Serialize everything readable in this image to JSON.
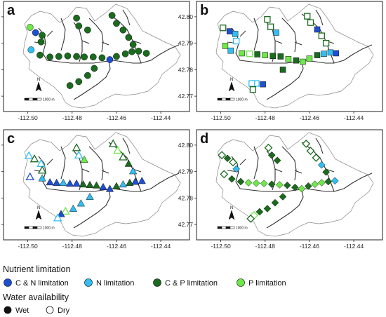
{
  "panels": [
    {
      "label": "a",
      "symbol": "circle"
    },
    {
      "label": "b",
      "symbol": "square"
    },
    {
      "label": "c",
      "symbol": "triangle"
    },
    {
      "label": "d",
      "symbol": "diamond"
    }
  ],
  "axes": {
    "x_ticks": [
      "-112.50",
      "-112.48",
      "-112.46",
      "-112.44"
    ],
    "y_ticks": [
      "42.80",
      "42.79",
      "42.78",
      "42.77"
    ]
  },
  "north_arrow": "N",
  "scale_bar": {
    "label": "1000 m"
  },
  "legend": {
    "nutrient_title": "Nutrient limitation",
    "nutrient_items": [
      {
        "name": "C & N limitation",
        "color": "#1f4fd1"
      },
      {
        "name": "N limitation",
        "color": "#33bdf0"
      },
      {
        "name": "C & P limitation",
        "color": "#1a6b1e"
      },
      {
        "name": "P limitation",
        "color": "#6fe84a"
      }
    ],
    "water_title": "Water availability",
    "water_items": [
      {
        "name": "Wet",
        "style": "filled"
      },
      {
        "name": "Dry",
        "style": "open"
      }
    ]
  },
  "colors": {
    "CN": "#1f4fd1",
    "N": "#33bdf0",
    "CP": "#1a6b1e",
    "P": "#6fe84a"
  },
  "map_data": {
    "type": "site-map",
    "xlim": [
      -112.51,
      -112.428
    ],
    "ylim": [
      42.765,
      42.805
    ],
    "panels": {
      "a": [
        {
          "x": -112.499,
          "y": 42.796,
          "c": "P",
          "w": true
        },
        {
          "x": -112.4965,
          "y": 42.794,
          "c": "CN",
          "w": true
        },
        {
          "x": -112.4935,
          "y": 42.793,
          "c": "CP",
          "w": true
        },
        {
          "x": -112.494,
          "y": 42.7905,
          "c": "CP",
          "w": true
        },
        {
          "x": -112.4985,
          "y": 42.7875,
          "c": "N",
          "w": true
        },
        {
          "x": -112.4945,
          "y": 42.7855,
          "c": "CP",
          "w": true
        },
        {
          "x": -112.49,
          "y": 42.7848,
          "c": "CP",
          "w": true
        },
        {
          "x": -112.486,
          "y": 42.785,
          "c": "CP",
          "w": true
        },
        {
          "x": -112.482,
          "y": 42.7852,
          "c": "CP",
          "w": true
        },
        {
          "x": -112.478,
          "y": 42.785,
          "c": "CP",
          "w": true
        },
        {
          "x": -112.4745,
          "y": 42.7848,
          "c": "CP",
          "w": true
        },
        {
          "x": -112.4705,
          "y": 42.7848,
          "c": "CP",
          "w": true
        },
        {
          "x": -112.4665,
          "y": 42.7845,
          "c": "CP",
          "w": true
        },
        {
          "x": -112.463,
          "y": 42.7838,
          "c": "CN",
          "w": true
        },
        {
          "x": -112.46,
          "y": 42.785,
          "c": "CP",
          "w": true
        },
        {
          "x": -112.456,
          "y": 42.786,
          "c": "CP",
          "w": true
        },
        {
          "x": -112.453,
          "y": 42.7868,
          "c": "CP",
          "w": true
        },
        {
          "x": -112.45,
          "y": 42.787,
          "c": "CP",
          "w": true
        },
        {
          "x": -112.4465,
          "y": 42.7862,
          "c": "CP",
          "w": true
        },
        {
          "x": -112.478,
          "y": 42.7995,
          "c": "CP",
          "w": true
        },
        {
          "x": -112.477,
          "y": 42.7965,
          "c": "CP",
          "w": true
        },
        {
          "x": -112.473,
          "y": 42.795,
          "c": "CP",
          "w": true
        },
        {
          "x": -112.462,
          "y": 42.8005,
          "c": "CP",
          "w": true
        },
        {
          "x": -112.46,
          "y": 42.7975,
          "c": "CP",
          "w": true
        },
        {
          "x": -112.457,
          "y": 42.795,
          "c": "CP",
          "w": true
        },
        {
          "x": -112.4545,
          "y": 42.7922,
          "c": "CP",
          "w": true
        },
        {
          "x": -112.4525,
          "y": 42.7895,
          "c": "CP",
          "w": true
        },
        {
          "x": -112.47,
          "y": 42.7805,
          "c": "CP",
          "w": true
        },
        {
          "x": -112.473,
          "y": 42.7778,
          "c": "CP",
          "w": true
        },
        {
          "x": -112.477,
          "y": 42.7755,
          "c": "CP",
          "w": true
        },
        {
          "x": -112.481,
          "y": 42.774,
          "c": "CP",
          "w": true
        }
      ],
      "b": [
        {
          "x": -112.499,
          "y": 42.7958,
          "c": "CP",
          "w": false
        },
        {
          "x": -112.496,
          "y": 42.7945,
          "c": "CN",
          "w": true
        },
        {
          "x": -112.4935,
          "y": 42.7935,
          "c": "N",
          "w": true
        },
        {
          "x": -112.493,
          "y": 42.7908,
          "c": "N",
          "w": false
        },
        {
          "x": -112.498,
          "y": 42.789,
          "c": "P",
          "w": true
        },
        {
          "x": -112.4955,
          "y": 42.7872,
          "c": "N",
          "w": true
        },
        {
          "x": -112.4905,
          "y": 42.7862,
          "c": "P",
          "w": true
        },
        {
          "x": -112.487,
          "y": 42.786,
          "c": "P",
          "w": false
        },
        {
          "x": -112.4835,
          "y": 42.7858,
          "c": "CP",
          "w": true
        },
        {
          "x": -112.48,
          "y": 42.7855,
          "c": "P",
          "w": true
        },
        {
          "x": -112.4765,
          "y": 42.7852,
          "c": "CP",
          "w": true
        },
        {
          "x": -112.473,
          "y": 42.785,
          "c": "CP",
          "w": true
        },
        {
          "x": -112.4695,
          "y": 42.784,
          "c": "P",
          "w": true
        },
        {
          "x": -112.466,
          "y": 42.7835,
          "c": "CP",
          "w": true
        },
        {
          "x": -112.463,
          "y": 42.783,
          "c": "P",
          "w": true
        },
        {
          "x": -112.46,
          "y": 42.7842,
          "c": "P",
          "w": true
        },
        {
          "x": -112.4565,
          "y": 42.7855,
          "c": "CP",
          "w": true
        },
        {
          "x": -112.4535,
          "y": 42.786,
          "c": "N",
          "w": true
        },
        {
          "x": -112.4505,
          "y": 42.7865,
          "c": "N",
          "w": true
        },
        {
          "x": -112.448,
          "y": 42.7862,
          "c": "CN",
          "w": true
        },
        {
          "x": -112.479,
          "y": 42.799,
          "c": "CP",
          "w": false
        },
        {
          "x": -112.4775,
          "y": 42.7962,
          "c": "CP",
          "w": false
        },
        {
          "x": -112.475,
          "y": 42.794,
          "c": "N",
          "w": true
        },
        {
          "x": -112.461,
          "y": 42.8002,
          "c": "CP",
          "w": false
        },
        {
          "x": -112.4595,
          "y": 42.7978,
          "c": "CP",
          "w": false
        },
        {
          "x": -112.4565,
          "y": 42.7952,
          "c": "CN",
          "w": true
        },
        {
          "x": -112.4545,
          "y": 42.7928,
          "c": "CP",
          "w": false
        },
        {
          "x": -112.4525,
          "y": 42.79,
          "c": "CP",
          "w": false
        },
        {
          "x": -112.472,
          "y": 42.78,
          "c": "CP",
          "w": true
        },
        {
          "x": -112.481,
          "y": 42.7745,
          "c": "CN",
          "w": true
        },
        {
          "x": -112.484,
          "y": 42.7748,
          "c": "N",
          "w": false
        },
        {
          "x": -112.486,
          "y": 42.7748,
          "c": "N",
          "w": false
        },
        {
          "x": -112.4855,
          "y": 42.7725,
          "c": "CP",
          "w": false
        }
      ],
      "c": [
        {
          "x": -112.4995,
          "y": 42.796,
          "c": "N",
          "w": false
        },
        {
          "x": -112.497,
          "y": 42.7948,
          "c": "CP",
          "w": false
        },
        {
          "x": -112.494,
          "y": 42.793,
          "c": "N",
          "w": false
        },
        {
          "x": -112.4935,
          "y": 42.7905,
          "c": "CP",
          "w": false
        },
        {
          "x": -112.499,
          "y": 42.788,
          "c": "CN",
          "w": false
        },
        {
          "x": -112.4935,
          "y": 42.7875,
          "c": "N",
          "w": true
        },
        {
          "x": -112.49,
          "y": 42.786,
          "c": "CN",
          "w": true
        },
        {
          "x": -112.487,
          "y": 42.7858,
          "c": "CN",
          "w": true
        },
        {
          "x": -112.484,
          "y": 42.7858,
          "c": "N",
          "w": true
        },
        {
          "x": -112.481,
          "y": 42.7855,
          "c": "CN",
          "w": true
        },
        {
          "x": -112.478,
          "y": 42.7855,
          "c": "CN",
          "w": true
        },
        {
          "x": -112.475,
          "y": 42.7852,
          "c": "CP",
          "w": true
        },
        {
          "x": -112.472,
          "y": 42.785,
          "c": "CP",
          "w": true
        },
        {
          "x": -112.469,
          "y": 42.7848,
          "c": "CP",
          "w": true
        },
        {
          "x": -112.466,
          "y": 42.7842,
          "c": "CN",
          "w": true
        },
        {
          "x": -112.463,
          "y": 42.7835,
          "c": "CN",
          "w": true
        },
        {
          "x": -112.46,
          "y": 42.7845,
          "c": "CP",
          "w": true
        },
        {
          "x": -112.457,
          "y": 42.7852,
          "c": "N",
          "w": true
        },
        {
          "x": -112.454,
          "y": 42.7858,
          "c": "CP",
          "w": true
        },
        {
          "x": -112.4515,
          "y": 42.7862,
          "c": "CN",
          "w": true
        },
        {
          "x": -112.4485,
          "y": 42.7865,
          "c": "CN",
          "w": true
        },
        {
          "x": -112.478,
          "y": 42.799,
          "c": "CP",
          "w": false
        },
        {
          "x": -112.477,
          "y": 42.7962,
          "c": "N",
          "w": false
        },
        {
          "x": -112.4745,
          "y": 42.7945,
          "c": "P",
          "w": true
        },
        {
          "x": -112.4615,
          "y": 42.8005,
          "c": "CP",
          "w": false
        },
        {
          "x": -112.4595,
          "y": 42.798,
          "c": "P",
          "w": false
        },
        {
          "x": -112.457,
          "y": 42.7955,
          "c": "CP",
          "w": false
        },
        {
          "x": -112.4545,
          "y": 42.793,
          "c": "CP",
          "w": true
        },
        {
          "x": -112.4525,
          "y": 42.7902,
          "c": "N",
          "w": true
        },
        {
          "x": -112.472,
          "y": 42.7805,
          "c": "N",
          "w": true
        },
        {
          "x": -112.476,
          "y": 42.778,
          "c": "N",
          "w": true
        },
        {
          "x": -112.4795,
          "y": 42.776,
          "c": "N",
          "w": true
        },
        {
          "x": -112.483,
          "y": 42.775,
          "c": "P",
          "w": false
        },
        {
          "x": -112.485,
          "y": 42.774,
          "c": "CN",
          "w": true
        },
        {
          "x": -112.4865,
          "y": 42.7725,
          "c": "N",
          "w": false
        }
      ],
      "d": [
        {
          "x": -112.4995,
          "y": 42.7962,
          "c": "CP",
          "w": false
        },
        {
          "x": -112.497,
          "y": 42.795,
          "c": "CP",
          "w": true
        },
        {
          "x": -112.4945,
          "y": 42.7935,
          "c": "CP",
          "w": false
        },
        {
          "x": -112.493,
          "y": 42.791,
          "c": "N",
          "w": true
        },
        {
          "x": -112.4985,
          "y": 42.789,
          "c": "CP",
          "w": false
        },
        {
          "x": -112.495,
          "y": 42.7872,
          "c": "CP",
          "w": true
        },
        {
          "x": -112.491,
          "y": 42.7862,
          "c": "CP",
          "w": true
        },
        {
          "x": -112.4875,
          "y": 42.7858,
          "c": "P",
          "w": true
        },
        {
          "x": -112.484,
          "y": 42.7856,
          "c": "P",
          "w": true
        },
        {
          "x": -112.4805,
          "y": 42.7855,
          "c": "P",
          "w": true
        },
        {
          "x": -112.477,
          "y": 42.7852,
          "c": "CP",
          "w": true
        },
        {
          "x": -112.4735,
          "y": 42.785,
          "c": "P",
          "w": true
        },
        {
          "x": -112.47,
          "y": 42.7848,
          "c": "CP",
          "w": true
        },
        {
          "x": -112.4665,
          "y": 42.784,
          "c": "CP",
          "w": true
        },
        {
          "x": -112.4635,
          "y": 42.7835,
          "c": "P",
          "w": true
        },
        {
          "x": -112.4605,
          "y": 42.7845,
          "c": "CP",
          "w": true
        },
        {
          "x": -112.4575,
          "y": 42.7852,
          "c": "P",
          "w": true
        },
        {
          "x": -112.4545,
          "y": 42.7858,
          "c": "P",
          "w": true
        },
        {
          "x": -112.4515,
          "y": 42.7862,
          "c": "CP",
          "w": true
        },
        {
          "x": -112.4485,
          "y": 42.7865,
          "c": "N",
          "w": true
        },
        {
          "x": -112.4785,
          "y": 42.799,
          "c": "CP",
          "w": false
        },
        {
          "x": -112.477,
          "y": 42.7962,
          "c": "CP",
          "w": true
        },
        {
          "x": -112.4745,
          "y": 42.7942,
          "c": "CP",
          "w": true
        },
        {
          "x": -112.4615,
          "y": 42.8005,
          "c": "CP",
          "w": false
        },
        {
          "x": -112.4595,
          "y": 42.7978,
          "c": "CP",
          "w": false
        },
        {
          "x": -112.457,
          "y": 42.7952,
          "c": "CP",
          "w": false
        },
        {
          "x": -112.4545,
          "y": 42.7925,
          "c": "N",
          "w": true
        },
        {
          "x": -112.4525,
          "y": 42.7898,
          "c": "CP",
          "w": true
        },
        {
          "x": -112.472,
          "y": 42.7805,
          "c": "CP",
          "w": true
        },
        {
          "x": -112.4755,
          "y": 42.7782,
          "c": "CP",
          "w": true
        },
        {
          "x": -112.479,
          "y": 42.776,
          "c": "CP",
          "w": true
        },
        {
          "x": -112.4825,
          "y": 42.7748,
          "c": "CP",
          "w": true
        },
        {
          "x": -112.485,
          "y": 42.7735,
          "c": "P",
          "w": false
        },
        {
          "x": -112.4865,
          "y": 42.7722,
          "c": "CP",
          "w": false
        }
      ]
    }
  }
}
